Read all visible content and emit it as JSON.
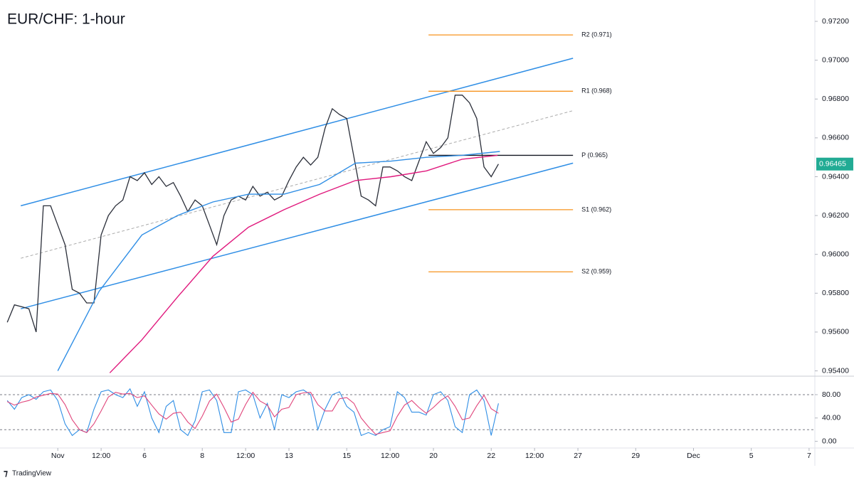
{
  "chart_data": {
    "type": "line",
    "title": "EUR/CHF: 1-hour",
    "xlim": [
      -2,
      26.2
    ],
    "ylim": [
      0.9538,
      0.9731
    ],
    "yticks": [
      {
        "value": 0.972,
        "label": "0.97200"
      },
      {
        "value": 0.97,
        "label": "0.97000"
      },
      {
        "value": 0.968,
        "label": "0.96800"
      },
      {
        "value": 0.966,
        "label": "0.96600"
      },
      {
        "value": 0.964,
        "label": "0.96400"
      },
      {
        "value": 0.962,
        "label": "0.96200"
      },
      {
        "value": 0.96,
        "label": "0.96000"
      },
      {
        "value": 0.958,
        "label": "0.95800"
      },
      {
        "value": 0.956,
        "label": "0.95600"
      },
      {
        "value": 0.954,
        "label": "0.95400"
      }
    ],
    "xticks": [
      {
        "value": 0,
        "label": "Nov"
      },
      {
        "value": 1.5,
        "label": "12:00"
      },
      {
        "value": 3,
        "label": "6"
      },
      {
        "value": 5,
        "label": "8"
      },
      {
        "value": 6.5,
        "label": "12:00"
      },
      {
        "value": 8,
        "label": "13"
      },
      {
        "value": 10,
        "label": "15"
      },
      {
        "value": 11.5,
        "label": "12:00"
      },
      {
        "value": 13,
        "label": "20"
      },
      {
        "value": 15,
        "label": "22"
      },
      {
        "value": 16.5,
        "label": "12:00"
      },
      {
        "value": 18,
        "label": "27"
      },
      {
        "value": 20,
        "label": "29"
      },
      {
        "value": 22,
        "label": "Dec"
      },
      {
        "value": 24,
        "label": "5"
      },
      {
        "value": 26,
        "label": "7"
      }
    ],
    "series": [
      {
        "color": "#2a2e39",
        "x": [
          -1.75,
          -1.5,
          -1.25,
          -1,
          -0.75,
          -0.5,
          -0.25,
          0,
          0.25,
          0.5,
          0.75,
          1,
          1.25,
          1.5,
          1.75,
          2,
          2.25,
          2.5,
          2.75,
          3,
          3.25,
          3.5,
          3.75,
          4,
          4.25,
          4.5,
          4.75,
          5,
          5.25,
          5.5,
          5.75,
          6,
          6.25,
          6.5,
          6.75,
          7,
          7.25,
          7.5,
          7.75,
          8,
          8.25,
          8.5,
          8.75,
          9,
          9.25,
          9.5,
          9.75,
          10,
          10.25,
          10.5,
          10.75,
          11,
          11.25,
          11.5,
          11.75,
          12,
          12.25,
          12.5,
          12.75,
          13,
          13.25,
          13.5,
          13.75,
          14,
          14.25,
          14.5,
          14.75,
          15,
          15.25
        ],
        "values": [
          0.9565,
          0.9574,
          0.9573,
          0.9572,
          0.956,
          0.9625,
          0.9625,
          0.9615,
          0.9605,
          0.9582,
          0.958,
          0.9575,
          0.9575,
          0.961,
          0.962,
          0.9625,
          0.9628,
          0.964,
          0.9638,
          0.9642,
          0.9636,
          0.964,
          0.9635,
          0.9637,
          0.963,
          0.9622,
          0.9628,
          0.9625,
          0.9615,
          0.9605,
          0.962,
          0.9628,
          0.963,
          0.9628,
          0.9635,
          0.963,
          0.9632,
          0.9628,
          0.963,
          0.9638,
          0.9645,
          0.965,
          0.9646,
          0.965,
          0.9665,
          0.9675,
          0.9672,
          0.967,
          0.965,
          0.963,
          0.9628,
          0.9625,
          0.9645,
          0.9645,
          0.9643,
          0.964,
          0.9638,
          0.9648,
          0.9658,
          0.9652,
          0.9655,
          0.966,
          0.9682,
          0.9682,
          0.9678,
          0.967,
          0.9645,
          0.964,
          0.96465
        ]
      },
      {
        "color": "#2f8ee5",
        "x": [
          0,
          1.43,
          2.91,
          4.14,
          5.37,
          6.6,
          7.83,
          9.06,
          10.3,
          11.53,
          12.76,
          13.99,
          15.3
        ],
        "values": [
          0.954,
          0.9581,
          0.961,
          0.962,
          0.9627,
          0.9631,
          0.9631,
          0.9636,
          0.9647,
          0.9648,
          0.965,
          0.9651,
          0.9653
        ]
      },
      {
        "color": "#e0197d",
        "x": [
          1.8,
          2.91,
          4.14,
          5.37,
          6.6,
          7.83,
          9.06,
          10.3,
          11.53,
          12.76,
          13.99,
          15.22
        ],
        "values": [
          0.9539,
          0.9556,
          0.9578,
          0.9599,
          0.9614,
          0.9623,
          0.9631,
          0.9638,
          0.964,
          0.9643,
          0.9649,
          0.9651
        ]
      }
    ],
    "channel": [
      {
        "color": "#2f8ee5",
        "dash": false,
        "x": [
          -1.28,
          17.83
        ],
        "values": [
          0.9625,
          0.9701
        ]
      },
      {
        "color": "#2f8ee5",
        "dash": false,
        "x": [
          -1.28,
          17.83
        ],
        "values": [
          0.9572,
          0.9647
        ]
      },
      {
        "color": "#aaaaaa",
        "dash": true,
        "x": [
          -1.28,
          17.83
        ],
        "values": [
          0.9598,
          0.9674
        ]
      }
    ],
    "pivot_x": [
      12.83,
      17.83
    ],
    "pivots": [
      {
        "label": "R2 (0.971)",
        "value": 0.9713,
        "color": "#f7931e"
      },
      {
        "label": "R1 (0.968)",
        "value": 0.9684,
        "color": "#f7931e"
      },
      {
        "label": "P (0.965)",
        "value": 0.9651,
        "color": "#131722"
      },
      {
        "label": "S1 (0.962)",
        "value": 0.9623,
        "color": "#f7931e"
      },
      {
        "label": "S2 (0.959)",
        "value": 0.9591,
        "color": "#f7931e"
      }
    ],
    "last_price_color": "#22ab94",
    "stochastic": {
      "ylim": [
        -9,
        108
      ],
      "yticks": [
        {
          "value": 80,
          "label": "80.00"
        },
        {
          "value": 40,
          "label": "40.00"
        },
        {
          "value": 0,
          "label": "0.00"
        }
      ],
      "levels": [
        80,
        20
      ],
      "series": [
        {
          "color": "#2f8ee5",
          "values": [
            70,
            55,
            75,
            80,
            72,
            85,
            88,
            70,
            30,
            10,
            20,
            15,
            55,
            85,
            88,
            80,
            75,
            90,
            60,
            85,
            40,
            15,
            60,
            70,
            20,
            10,
            35,
            85,
            88,
            70,
            15,
            15,
            85,
            88,
            80,
            40,
            65,
            20,
            80,
            75,
            85,
            88,
            80,
            20,
            55,
            80,
            85,
            60,
            50,
            10,
            15,
            10,
            20,
            25,
            85,
            75,
            50,
            50,
            45,
            80,
            85,
            70,
            25,
            15,
            80,
            88,
            70,
            10,
            65
          ]
        },
        {
          "color": "#e0457b",
          "values": [
            68,
            62,
            67,
            70,
            76,
            79,
            82,
            81,
            63,
            37,
            20,
            15,
            30,
            52,
            76,
            84,
            81,
            82,
            75,
            78,
            62,
            47,
            38,
            48,
            50,
            33,
            22,
            43,
            69,
            81,
            58,
            33,
            38,
            63,
            84,
            69,
            62,
            42,
            55,
            58,
            80,
            83,
            84,
            63,
            52,
            52,
            73,
            75,
            65,
            40,
            25,
            12,
            15,
            18,
            43,
            62,
            70,
            58,
            48,
            58,
            70,
            78,
            60,
            37,
            40,
            61,
            79,
            56,
            48
          ]
        }
      ]
    },
    "footer": "TradingView"
  }
}
